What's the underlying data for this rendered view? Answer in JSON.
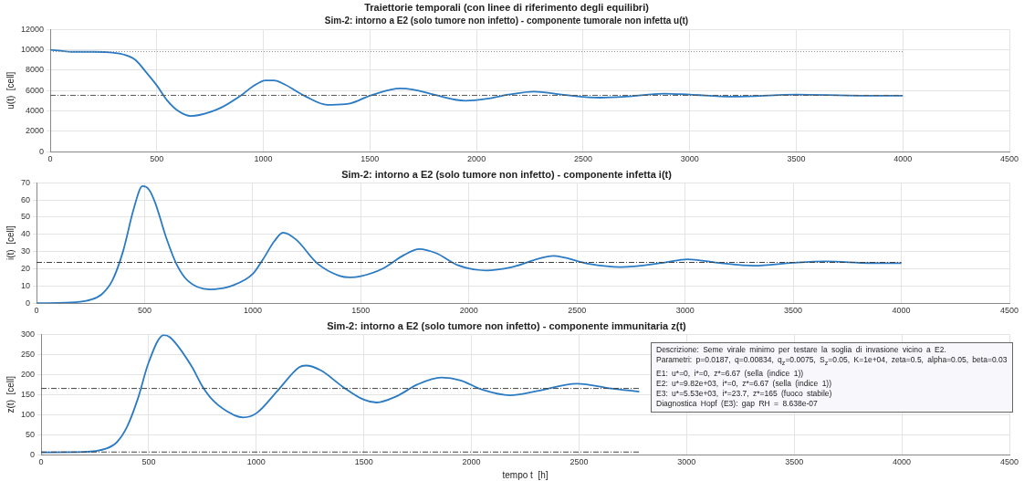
{
  "chart_data": [
    {
      "type": "line",
      "title": "Traiettorie temporali (con linee di riferimento degli equilibri)",
      "subtitle": "Sim-2: intorno a E2 (solo tumore non infetto) - componente tumorale non infetta u(t)",
      "ylabel": "u(t)  [cell]",
      "xlim": [
        0,
        4500
      ],
      "xticks": [
        0,
        500,
        1000,
        1500,
        2000,
        2500,
        3000,
        3500,
        4000,
        4500
      ],
      "ylim": [
        0,
        12000
      ],
      "yticks": [
        0,
        2000,
        4000,
        6000,
        8000,
        10000,
        12000
      ],
      "grid": true,
      "series": [
        {
          "color": "#2a7bc4",
          "x": [
            0,
            50,
            100,
            200,
            300,
            350,
            400,
            450,
            500,
            550,
            600,
            660,
            700,
            800,
            900,
            950,
            1010,
            1050,
            1100,
            1200,
            1300,
            1320,
            1400,
            1500,
            1600,
            1640,
            1700,
            1800,
            1900,
            1950,
            2050,
            2150,
            2270,
            2400,
            2580,
            2700,
            2880,
            3000,
            3200,
            3500,
            3800,
            4000
          ],
          "values": [
            10000,
            9900,
            9800,
            9800,
            9700,
            9500,
            9000,
            7800,
            6500,
            5000,
            4000,
            3500,
            3600,
            4300,
            5600,
            6400,
            7000,
            7000,
            6600,
            5400,
            4600,
            4600,
            4700,
            5500,
            6100,
            6200,
            6100,
            5600,
            5100,
            5000,
            5200,
            5600,
            5900,
            5600,
            5300,
            5400,
            5700,
            5600,
            5400,
            5600,
            5500,
            5500
          ]
        }
      ],
      "ref_lines": [
        {
          "axis": "y",
          "value": 9820,
          "color": "#8c8c8c",
          "line_style": "dotted"
        },
        {
          "axis": "y",
          "value": 5530,
          "color": "#555555",
          "line_style": "dashed"
        }
      ]
    },
    {
      "type": "line",
      "title": "Sim-2: intorno a E2 (solo tumore non infetto) - componente infetta i(t)",
      "ylabel": "i(t)  [cell]",
      "xlim": [
        0,
        4500
      ],
      "xticks": [
        0,
        500,
        1000,
        1500,
        2000,
        2500,
        3000,
        3500,
        4000,
        4500
      ],
      "ylim": [
        0,
        70
      ],
      "yticks": [
        0,
        10,
        20,
        30,
        40,
        50,
        60,
        70
      ],
      "grid": true,
      "series": [
        {
          "color": "#2a7bc4",
          "x": [
            0,
            100,
            200,
            250,
            300,
            350,
            400,
            450,
            490,
            520,
            550,
            600,
            650,
            700,
            800,
            850,
            900,
            1000,
            1050,
            1100,
            1140,
            1200,
            1300,
            1400,
            1450,
            1500,
            1600,
            1700,
            1770,
            1850,
            1950,
            2080,
            2200,
            2390,
            2550,
            2700,
            2900,
            3010,
            3150,
            3320,
            3500,
            3650,
            3850,
            4000
          ],
          "values": [
            0,
            0.1,
            0.8,
            2,
            5,
            13,
            30,
            55,
            68,
            66,
            58,
            38,
            22,
            13,
            8,
            8.5,
            10,
            17,
            26,
            36,
            41,
            37,
            23,
            16,
            15,
            15.7,
            20,
            28,
            31.5,
            29,
            22,
            19,
            21,
            27.5,
            23,
            21,
            23.5,
            25.5,
            23.5,
            21.8,
            23.5,
            24.3,
            23.3,
            23.2
          ]
        }
      ],
      "ref_lines": [
        {
          "axis": "y",
          "value": 23.7,
          "color": "#404040",
          "line_style": "dashed"
        }
      ]
    },
    {
      "type": "line",
      "title": "Sim-2: intorno a E2 (solo tumore non infetto) - componente immunitaria z(t)",
      "xlabel": "tempo t  [h]",
      "ylabel": "z(t)  [cell]",
      "xlim": [
        0,
        4500
      ],
      "xticks": [
        0,
        500,
        1000,
        1500,
        2000,
        2500,
        3000,
        3500,
        4000,
        4500
      ],
      "ylim": [
        0,
        300
      ],
      "yticks": [
        0,
        50,
        100,
        150,
        200,
        250,
        300
      ],
      "grid": true,
      "series": [
        {
          "color": "#2a7bc4",
          "x": [
            0,
            200,
            300,
            350,
            400,
            450,
            500,
            570,
            600,
            700,
            750,
            800,
            900,
            940,
            1000,
            1100,
            1200,
            1230,
            1300,
            1400,
            1500,
            1560,
            1650,
            1750,
            1860,
            1950,
            2050,
            2180,
            2300,
            2490,
            2650,
            2780
          ],
          "values": [
            6,
            7,
            15,
            30,
            70,
            140,
            230,
            298,
            292,
            220,
            170,
            135,
            98,
            93,
            103,
            160,
            218,
            222,
            210,
            170,
            137,
            130,
            145,
            175,
            192,
            185,
            162,
            148,
            158,
            177,
            165,
            157
          ]
        }
      ],
      "ref_lines": [
        {
          "axis": "y",
          "value": 165,
          "color": "#404040",
          "line_style": "dashed"
        },
        {
          "axis": "y",
          "value": 6.67,
          "color": "#404040",
          "line_style": "dashed"
        }
      ],
      "annotations": [
        "Descrizione: Seme virale minimo per testare la soglia di invasione vicino a E2.",
        "Parametri: p=0.0187, q=0.00834, q$_{z}$=0.0075, S$_{z}$=0.05, K=1e+04, zeta=0.5, alpha=0.05, beta=0.03",
        "E1: u*=0, i*=0, z*=6.67 (sella (indice 1))",
        "E2: u*=9.82e+03, i*=0, z*=6.67 (sella (indice 1))",
        "E3: u*=5.53e+03, i*=23.7, z*=165 (fuoco stabile)",
        "Diagnostica Hopf (E3): gap RH = 8.638e-07"
      ]
    }
  ]
}
